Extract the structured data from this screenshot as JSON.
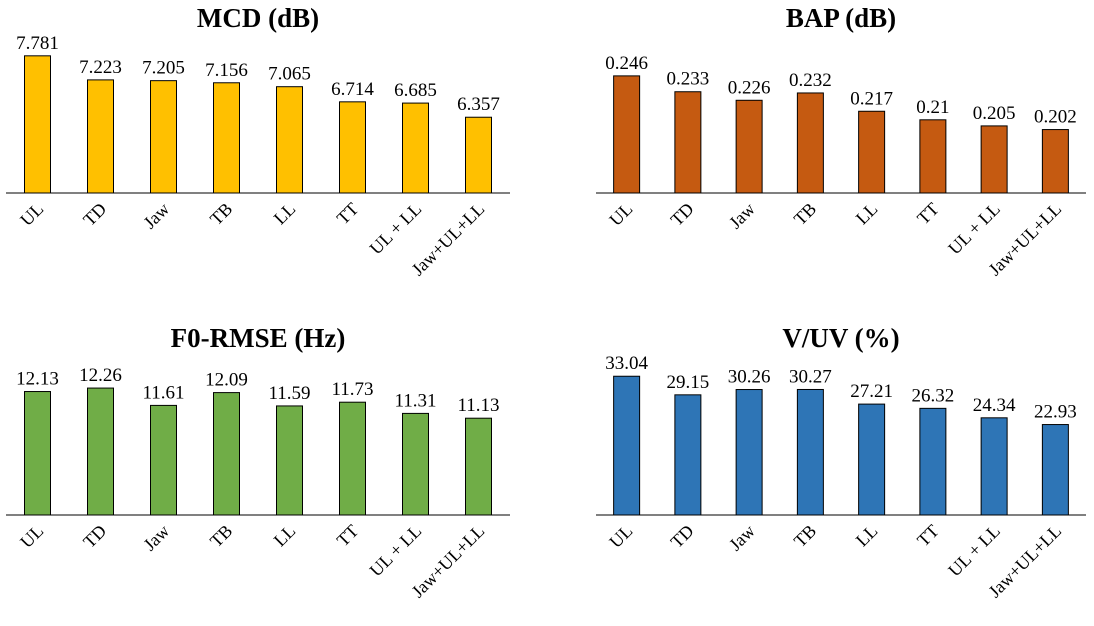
{
  "chart_data": [
    {
      "type": "bar",
      "title": "MCD (dB)",
      "categories": [
        "UL",
        "TD",
        "Jaw",
        "TB",
        "LL",
        "TT",
        "UL + LL",
        "Jaw+UL+LL"
      ],
      "values": [
        7.781,
        7.223,
        7.205,
        7.156,
        7.065,
        6.714,
        6.685,
        6.357
      ],
      "value_labels": [
        "7.781",
        "7.223",
        "7.205",
        "7.156",
        "7.065",
        "6.714",
        "6.685",
        "6.357"
      ],
      "color": "#FFC000",
      "xlabel": "",
      "ylabel": "",
      "ylim": [
        4.6,
        7.8
      ],
      "grid": false
    },
    {
      "type": "bar",
      "title": "BAP (dB)",
      "categories": [
        "UL",
        "TD",
        "Jaw",
        "TB",
        "LL",
        "TT",
        "UL + LL",
        "Jaw+UL+LL"
      ],
      "values": [
        0.246,
        0.233,
        0.226,
        0.232,
        0.217,
        0.21,
        0.205,
        0.202
      ],
      "value_labels": [
        "0.246",
        "0.233",
        "0.226",
        "0.232",
        "0.217",
        "0.21",
        "0.205",
        "0.202"
      ],
      "color": "#C55A11",
      "xlabel": "",
      "ylabel": "",
      "ylim": [
        0.15,
        0.25
      ],
      "grid": false
    },
    {
      "type": "bar",
      "title": "F0-RMSE (Hz)",
      "categories": [
        "UL",
        "TD",
        "Jaw",
        "TB",
        "LL",
        "TT",
        "UL + LL",
        "Jaw+UL+LL"
      ],
      "values": [
        12.13,
        12.26,
        11.61,
        12.09,
        11.59,
        11.73,
        11.31,
        11.13
      ],
      "value_labels": [
        "12.13",
        "12.26",
        "11.61",
        "12.09",
        "11.59",
        "11.73",
        "11.31",
        "11.13"
      ],
      "color": "#70AD47",
      "xlabel": "",
      "ylabel": "",
      "ylim": [
        7.5,
        12.3
      ],
      "grid": false
    },
    {
      "type": "bar",
      "title": "V/UV (%)",
      "categories": [
        "UL",
        "TD",
        "Jaw",
        "TB",
        "LL",
        "TT",
        "UL + LL",
        "Jaw+UL+LL"
      ],
      "values": [
        33.04,
        29.15,
        30.26,
        30.27,
        27.21,
        26.32,
        24.34,
        22.93
      ],
      "value_labels": [
        "33.04",
        "29.15",
        "30.26",
        "30.27",
        "27.21",
        "26.32",
        "24.34",
        "22.93"
      ],
      "color": "#2E75B6",
      "xlabel": "",
      "ylabel": "",
      "ylim": [
        4.0,
        33.3
      ],
      "grid": false
    }
  ]
}
